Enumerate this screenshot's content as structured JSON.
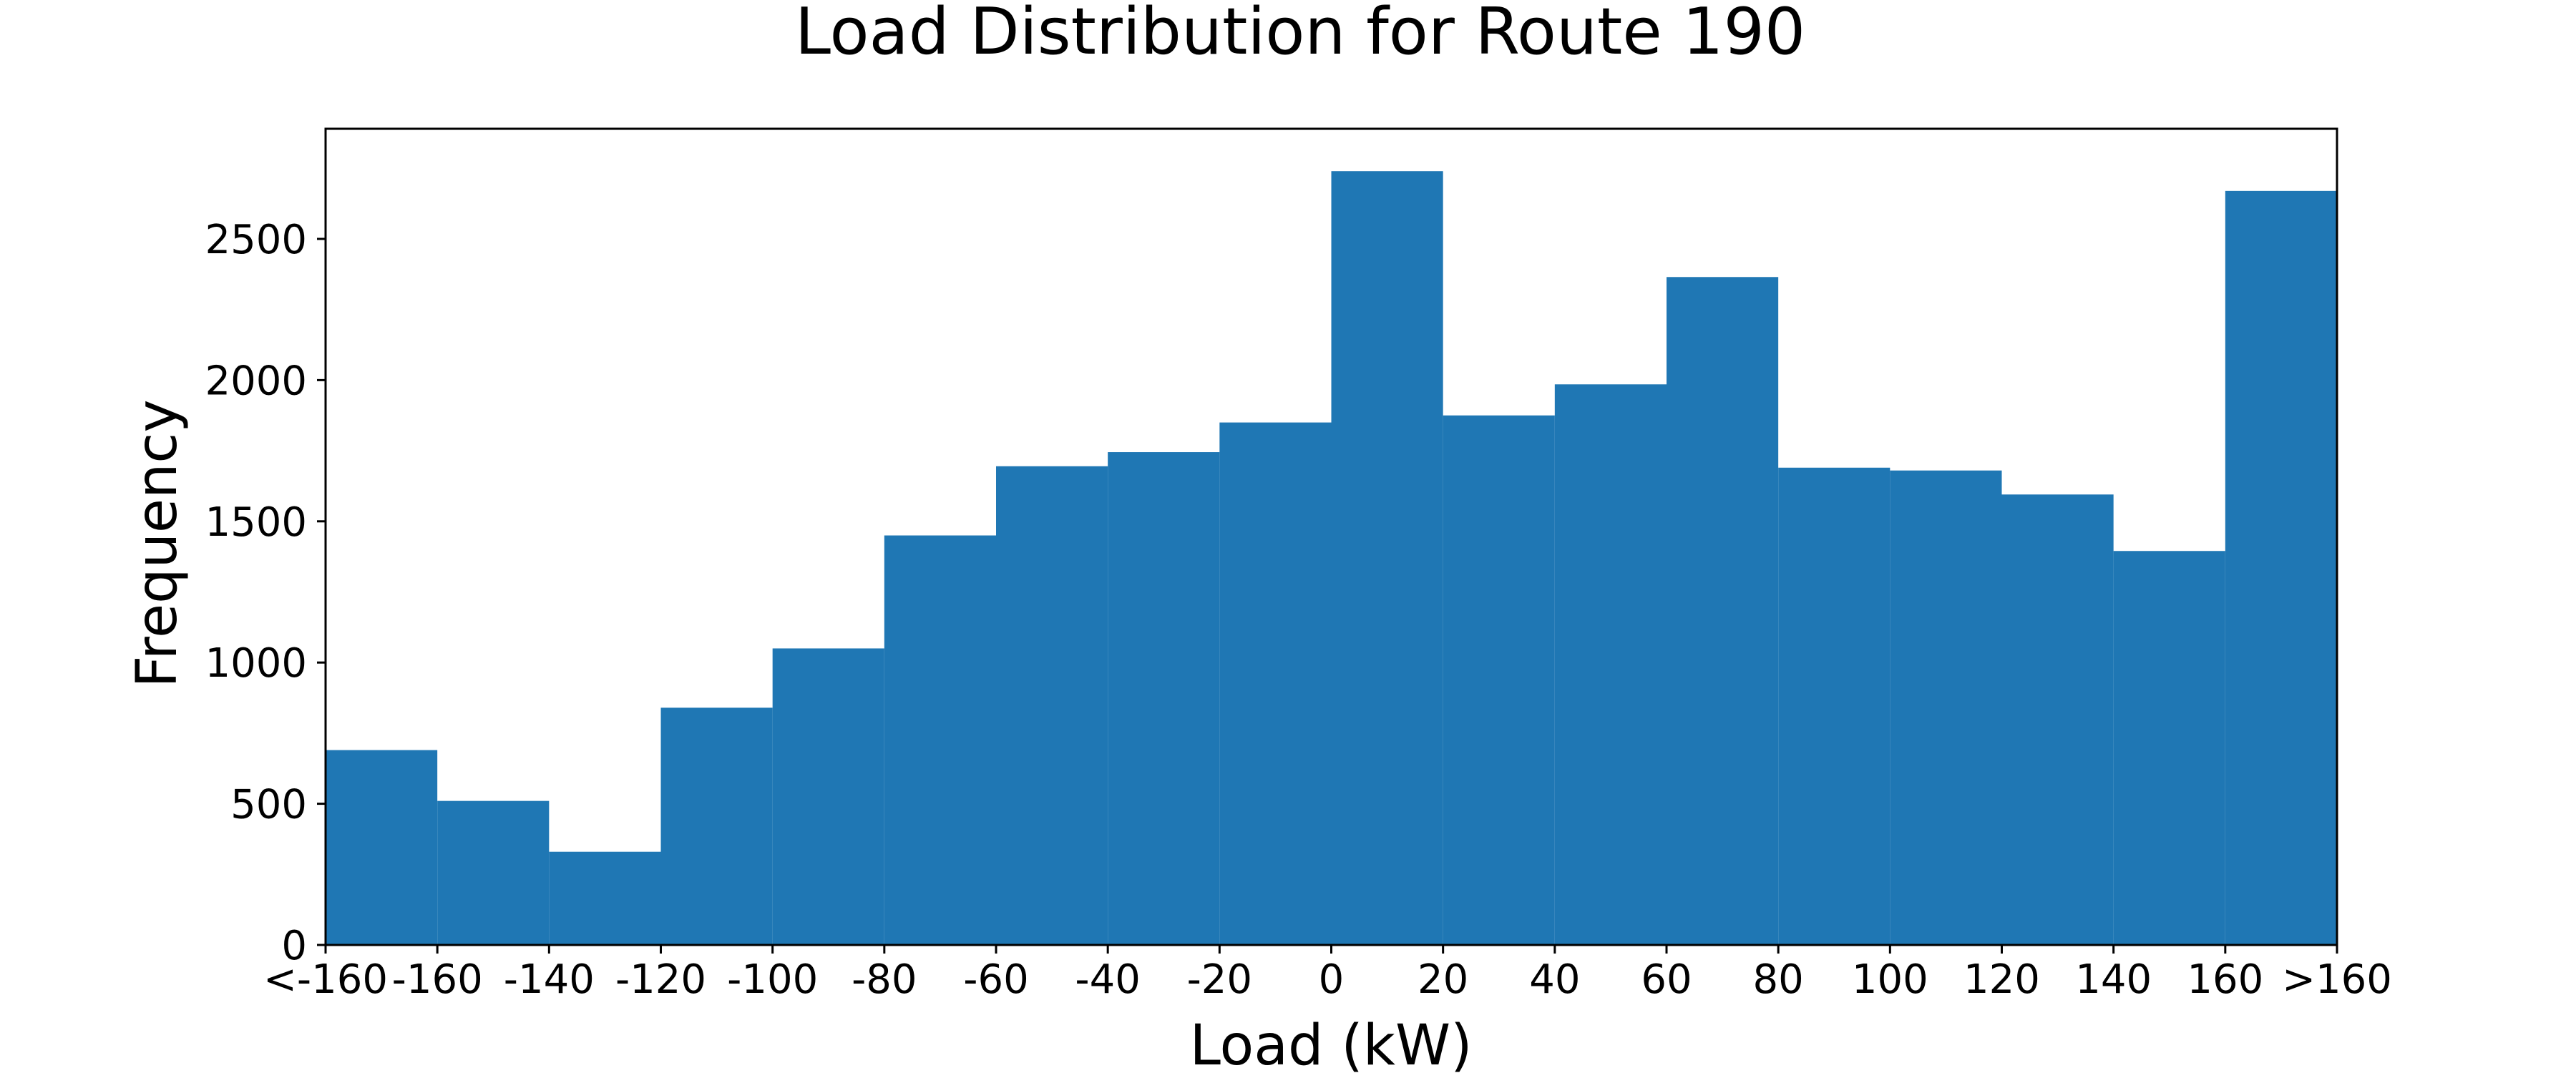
{
  "chart_data": {
    "type": "bar",
    "title": "Load Distribution for Route 190",
    "xlabel": "Load (kW)",
    "ylabel": "Frequency",
    "bar_color": "#1f77b4",
    "bins": [
      {
        "from": -180,
        "to": -160,
        "value": 690
      },
      {
        "from": -160,
        "to": -140,
        "value": 510
      },
      {
        "from": -140,
        "to": -120,
        "value": 330
      },
      {
        "from": -120,
        "to": -100,
        "value": 840
      },
      {
        "from": -100,
        "to": -80,
        "value": 1050
      },
      {
        "from": -80,
        "to": -60,
        "value": 1450
      },
      {
        "from": -60,
        "to": -40,
        "value": 1695
      },
      {
        "from": -40,
        "to": -20,
        "value": 1745
      },
      {
        "from": -20,
        "to": 0,
        "value": 1850
      },
      {
        "from": 0,
        "to": 20,
        "value": 2740
      },
      {
        "from": 20,
        "to": 40,
        "value": 1875
      },
      {
        "from": 40,
        "to": 60,
        "value": 1985
      },
      {
        "from": 60,
        "to": 80,
        "value": 2365
      },
      {
        "from": 80,
        "to": 100,
        "value": 1690
      },
      {
        "from": 100,
        "to": 120,
        "value": 1680
      },
      {
        "from": 120,
        "to": 140,
        "value": 1595
      },
      {
        "from": 140,
        "to": 160,
        "value": 1395
      },
      {
        "from": 160,
        "to": 180,
        "value": 2670
      }
    ],
    "xlim": [
      -180,
      180
    ],
    "ylim": [
      0,
      2890
    ],
    "x_ticks": [
      {
        "value": -180,
        "label": "<-160"
      },
      {
        "value": -160,
        "label": "-160"
      },
      {
        "value": -140,
        "label": "-140"
      },
      {
        "value": -120,
        "label": "-120"
      },
      {
        "value": -100,
        "label": "-100"
      },
      {
        "value": -80,
        "label": "-80"
      },
      {
        "value": -60,
        "label": "-60"
      },
      {
        "value": -40,
        "label": "-40"
      },
      {
        "value": -20,
        "label": "-20"
      },
      {
        "value": 0,
        "label": "0"
      },
      {
        "value": 20,
        "label": "20"
      },
      {
        "value": 40,
        "label": "40"
      },
      {
        "value": 60,
        "label": "60"
      },
      {
        "value": 80,
        "label": "80"
      },
      {
        "value": 100,
        "label": "100"
      },
      {
        "value": 120,
        "label": "120"
      },
      {
        "value": 140,
        "label": "140"
      },
      {
        "value": 160,
        "label": "160"
      },
      {
        "value": 180,
        "label": ">160"
      }
    ],
    "y_ticks": [
      0,
      500,
      1000,
      1500,
      2000,
      2500
    ],
    "grid": false,
    "legend": "none"
  }
}
